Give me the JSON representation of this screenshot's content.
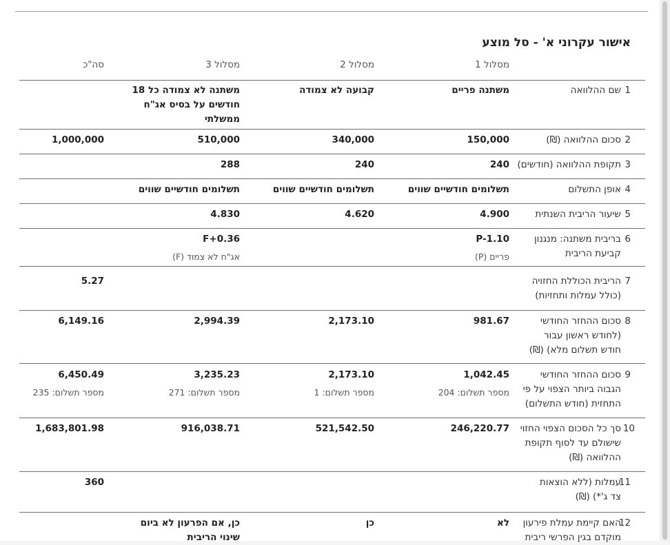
{
  "title": "אישור עקרוני א' - סל מוצע",
  "column_headers": [
    "מסלול 1",
    "מסלול 2",
    "מסלול 3",
    "סה\"כ"
  ],
  "rows": [
    {
      "num": "1",
      "label_lines": [
        "שם ההלוואה"
      ],
      "c1": "משתנה פריים",
      "c2": "קבועה לא צמודה",
      "c3_lines": [
        "משתנה לא צמודה כל 18",
        "חודשים על בסיס אג\"ח",
        "ממשלתי"
      ]
    },
    {
      "num": "2",
      "label_lines": [
        "סכום ההלוואה (₪)"
      ],
      "c1": "150,000",
      "c2": "340,000",
      "c3": "510,000",
      "c4": "1,000,000"
    },
    {
      "num": "3",
      "label_lines": [
        "תקופת ההלוואה (חודשים)"
      ],
      "c1": "240",
      "c2": "240",
      "c3": "288"
    },
    {
      "num": "4",
      "label_lines": [
        "אופן התשלום"
      ],
      "c1": "תשלומים חודשיים שווים",
      "c2": "תשלומים חודשיים שווים",
      "c3": "תשלומים חודשיים שווים"
    },
    {
      "num": "5",
      "label_lines": [
        "שיעור הריבית השנתית"
      ],
      "c1": "4.900",
      "c2": "4.620",
      "c3": "4.830"
    },
    {
      "num": "6",
      "label_lines": [
        "בריבית משתנה: מנגנון",
        "קביעת הריבית"
      ],
      "c1": "P-1.10",
      "c1_sub": "פריים (P)",
      "c3": "F+0.36",
      "c3_sub": "אג\"ח לא צמוד (F)"
    },
    {
      "num": "7",
      "label_lines": [
        "הריבית הכוללת החזויה",
        "(כולל עמלות ותחזיות)"
      ],
      "c4": "5.27"
    },
    {
      "num": "8",
      "label_lines": [
        "סכום ההחזר החודשי",
        "(לחודש ראשון עבור",
        "חודש תשלום מלא) (₪)"
      ],
      "c1": "981.67",
      "c2": "2,173.10",
      "c3": "2,994.39",
      "c4": "6,149.16"
    },
    {
      "num": "9",
      "label_lines": [
        "סכום ההחזר החודשי",
        "הגבוה ביותר הצפוי על פי",
        "התחזית (חודש התשלום)"
      ],
      "c1": "1,042.45",
      "c1_sub": "מספר תשלום: 204",
      "c2": "2,173.10",
      "c2_sub": "מספר תשלום: 1",
      "c3": "3,235.23",
      "c3_sub": "מספר תשלום: 271",
      "c4": "6,450.49",
      "c4_sub": "מספר תשלום: 235"
    },
    {
      "num": "10",
      "label_lines": [
        "סך כל הסכום הצפוי החזוי",
        "שישולם עד לסוף תקופת",
        "ההלוואה (₪)"
      ],
      "c1": "246,220.77",
      "c2": "521,542.50",
      "c3": "916,038.71",
      "c4": "1,683,801.98"
    },
    {
      "num": "11",
      "label_lines": [
        "עמלות (ללא הוצאות",
        "צד ג'*) (₪)"
      ],
      "c4": "360"
    },
    {
      "num": "12",
      "label_lines": [
        "האם קיימת עמלת פירעון",
        "מוקדם בגין הפרשי ריבית"
      ],
      "c1": "לא",
      "c2": "כן",
      "c3_lines": [
        "כן, אם הפרעון לא ביום",
        "שינוי הריבית"
      ]
    }
  ]
}
